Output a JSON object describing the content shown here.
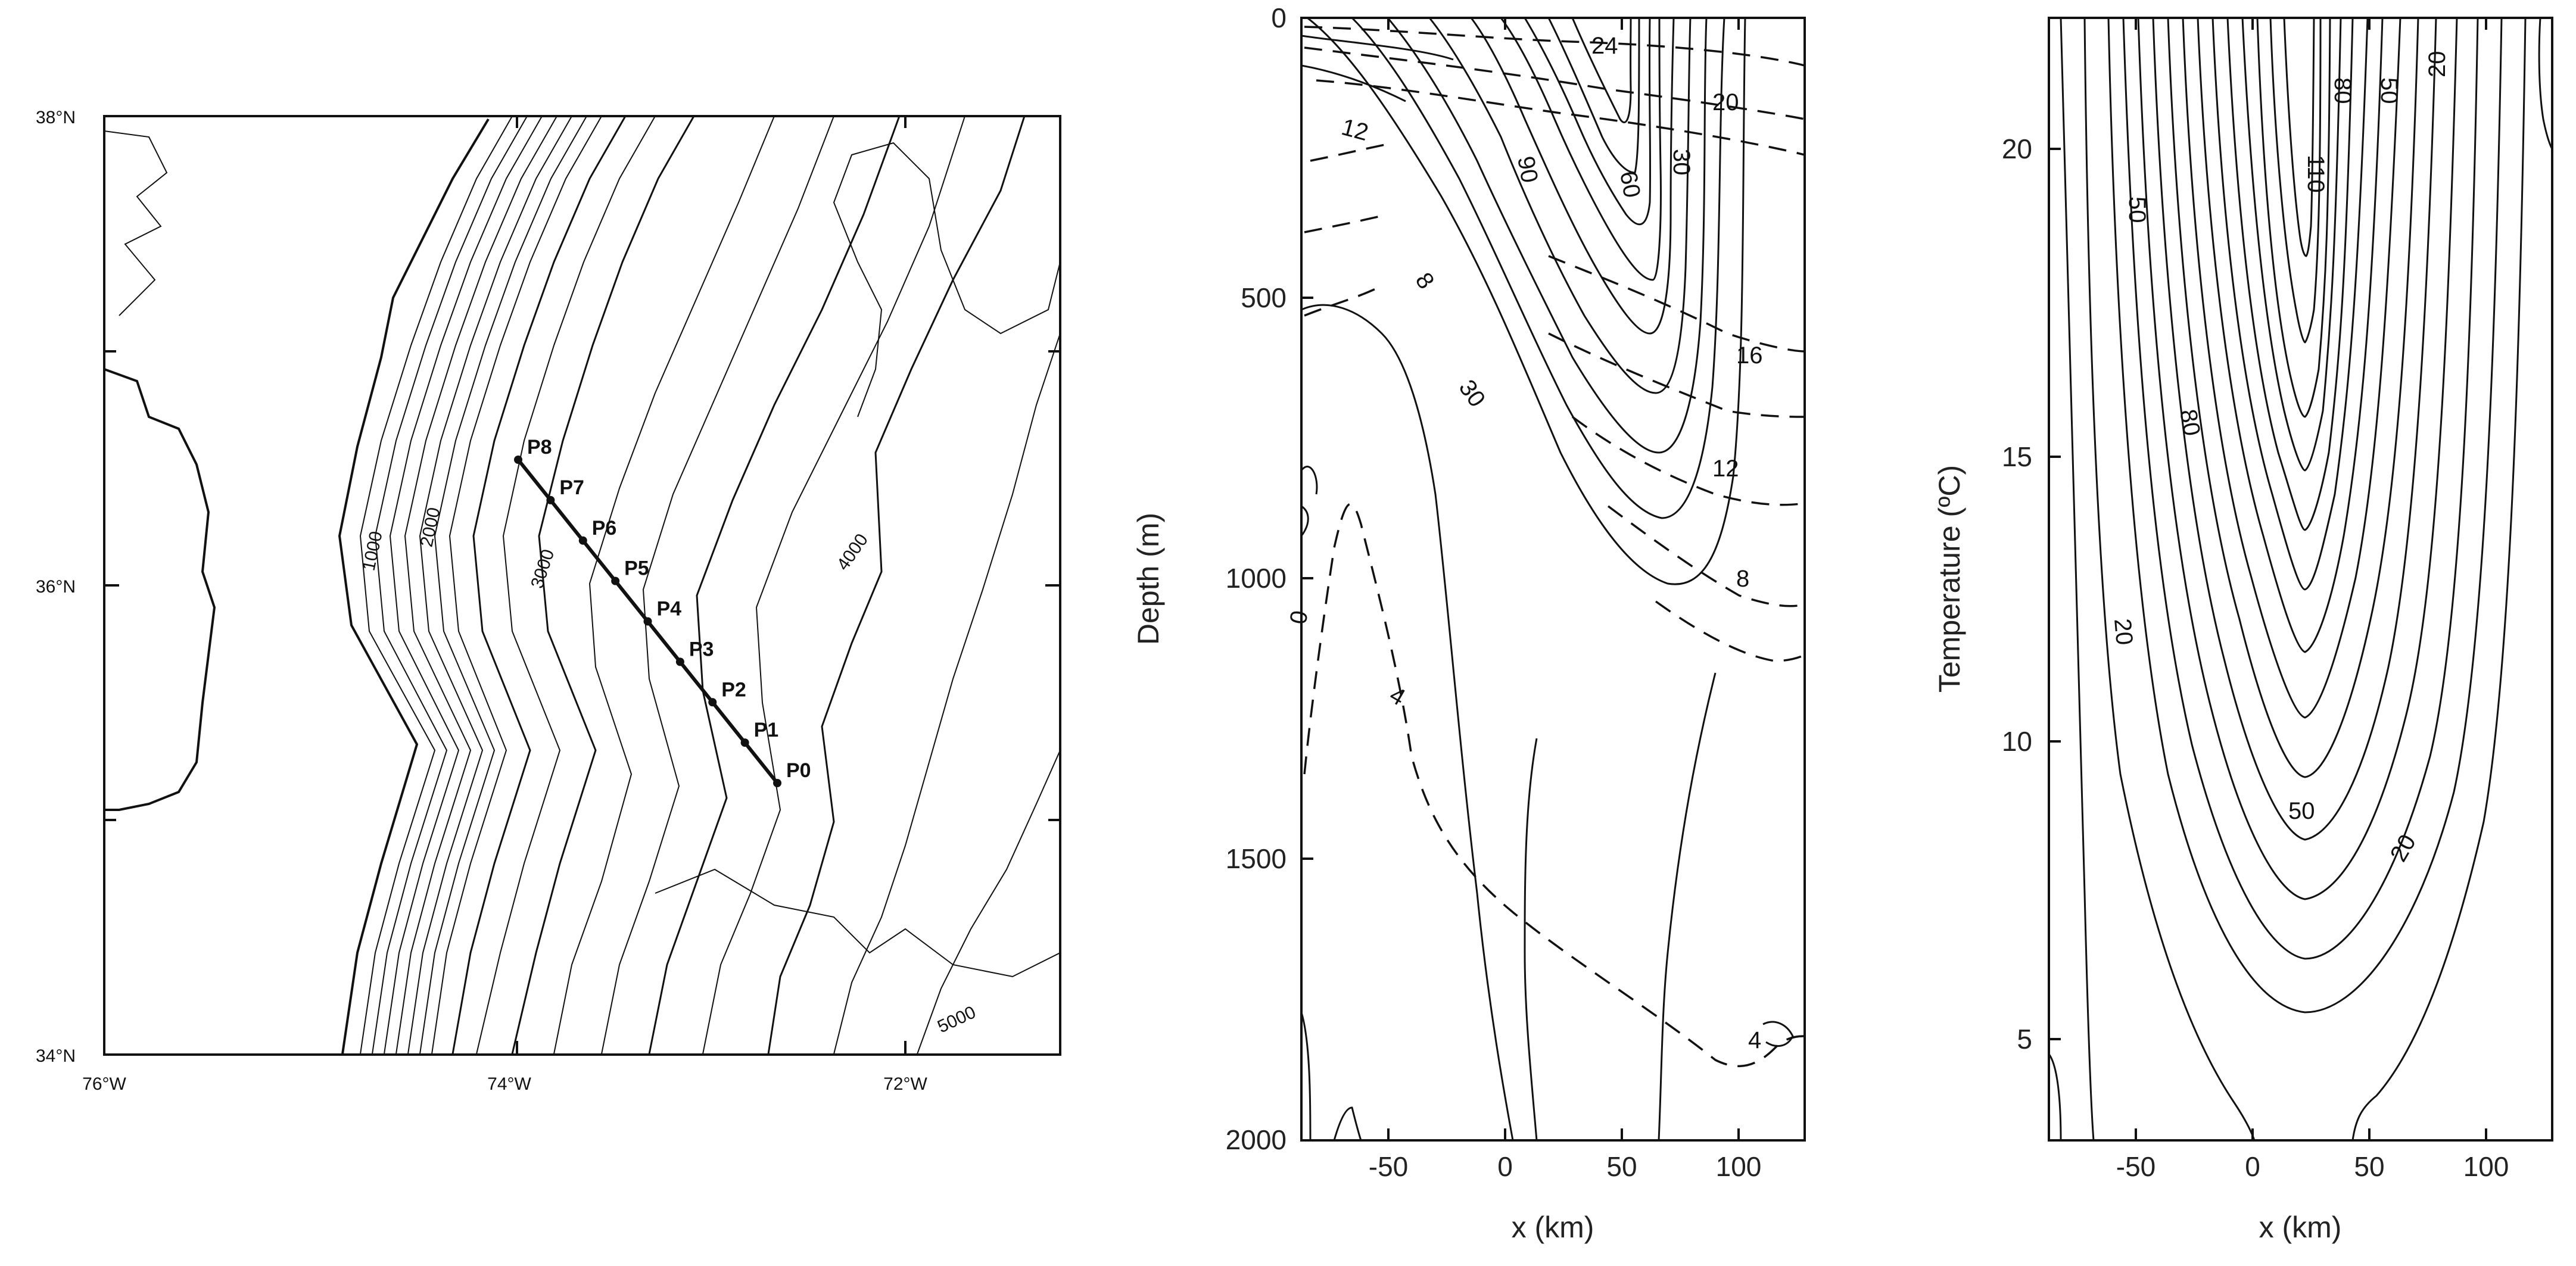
{
  "map": {
    "lat_labels": [
      "38°N",
      "36°N",
      "34°N"
    ],
    "lon_labels": [
      "76°W",
      "74°W",
      "72°W"
    ],
    "isobath_labels": [
      "1000",
      "2000",
      "3000",
      "4000",
      "5000"
    ],
    "stations": [
      "P8",
      "P7",
      "P6",
      "P5",
      "P4",
      "P3",
      "P2",
      "P1",
      "P0"
    ]
  },
  "section_depth": {
    "ylabel": "Depth (m)",
    "xlabel": "x (km)",
    "y_ticks": [
      "0",
      "500",
      "1000",
      "1500",
      "2000"
    ],
    "x_ticks": [
      "-50",
      "0",
      "50",
      "100"
    ],
    "solid_contour_labels": [
      "90",
      "60",
      "30",
      "8",
      "30",
      "0"
    ],
    "dashed_contour_labels": [
      "24",
      "20",
      "12",
      "16",
      "12",
      "8",
      "4",
      "4"
    ]
  },
  "section_temperature": {
    "ylabel": "Temperature (ºC)",
    "xlabel": "x (km)",
    "y_ticks": [
      "20",
      "15",
      "10",
      "5"
    ],
    "x_ticks": [
      "-50",
      "0",
      "50",
      "100"
    ],
    "contour_labels": [
      "80",
      "50",
      "20",
      "110",
      "50",
      "80",
      "20",
      "50",
      "20"
    ]
  }
}
